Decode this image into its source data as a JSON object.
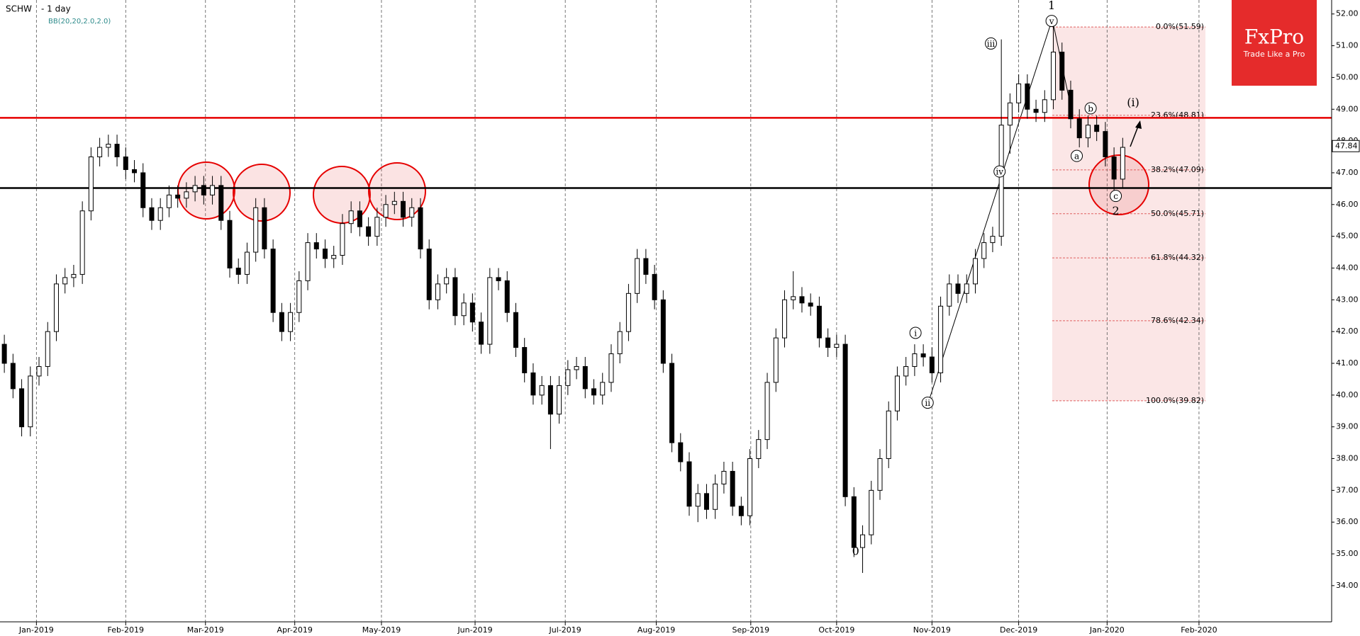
{
  "chart_data": {
    "type": "candlestick",
    "title": "SCHW",
    "subtitle": "- 1 day",
    "indicator": "BB(20,20,2.0,2.0)",
    "brand": {
      "name": "FxPro",
      "slogan": "Trade Like a Pro"
    },
    "open": [
      41.6,
      41.0,
      40.2,
      39.0,
      40.6,
      40.9,
      42.0,
      43.5,
      43.7,
      43.8,
      45.8,
      47.5,
      47.8,
      47.9,
      47.5,
      47.1,
      47.0,
      45.9,
      45.5,
      45.9,
      46.3,
      46.2,
      46.4,
      46.6,
      46.3,
      46.6,
      45.5,
      44.0,
      43.8,
      44.5,
      45.9,
      44.6,
      42.6,
      42.0,
      42.6,
      43.6,
      44.8,
      44.6,
      44.3,
      44.4,
      45.4,
      45.8,
      45.3,
      45.0,
      45.6,
      46.0,
      46.1,
      45.6,
      45.9,
      44.6,
      43.0,
      43.5,
      43.7,
      42.5,
      42.9,
      42.3,
      41.6,
      43.7,
      43.6,
      42.6,
      41.5,
      40.7,
      40.0,
      40.3,
      39.4,
      40.3,
      40.8,
      40.9,
      40.2,
      40.0,
      40.4,
      41.3,
      42.0,
      43.2,
      44.3,
      43.8,
      43.0,
      41.0,
      38.5,
      37.9,
      36.5,
      36.9,
      36.4,
      37.2,
      37.6,
      36.5,
      36.2,
      38.0,
      38.6,
      40.4,
      41.8,
      43.0,
      43.1,
      42.9,
      42.8,
      41.8,
      41.5,
      41.6,
      36.8,
      35.2,
      35.6,
      37.0,
      38.0,
      39.5,
      40.6,
      40.9,
      41.3,
      41.2,
      40.7,
      42.8,
      43.5,
      43.2,
      43.5,
      44.3,
      44.8,
      45.0,
      48.5,
      49.2,
      49.8,
      49.0,
      48.9,
      49.3,
      50.8,
      49.6,
      48.7,
      48.1,
      48.5,
      48.3,
      47.5,
      46.8
    ],
    "high": [
      41.9,
      41.3,
      40.5,
      40.9,
      41.2,
      42.3,
      43.8,
      44.0,
      44.1,
      46.1,
      47.8,
      48.1,
      48.2,
      48.2,
      47.8,
      47.4,
      47.3,
      46.2,
      46.2,
      46.6,
      46.6,
      46.7,
      46.9,
      46.9,
      46.9,
      46.9,
      45.8,
      44.3,
      44.8,
      46.2,
      46.2,
      44.9,
      42.9,
      42.9,
      43.9,
      45.1,
      45.1,
      44.9,
      44.7,
      45.7,
      46.1,
      46.1,
      45.6,
      45.9,
      46.3,
      46.4,
      46.4,
      46.2,
      46.2,
      44.9,
      43.8,
      44.0,
      44.0,
      43.2,
      43.2,
      42.6,
      44.0,
      44.0,
      43.9,
      42.9,
      41.8,
      41.0,
      40.6,
      40.6,
      40.6,
      41.1,
      41.2,
      41.2,
      40.5,
      40.7,
      41.6,
      42.3,
      43.5,
      44.6,
      44.6,
      44.1,
      43.3,
      41.3,
      38.8,
      38.2,
      37.2,
      37.2,
      37.5,
      37.9,
      37.9,
      36.8,
      38.3,
      38.9,
      40.7,
      42.1,
      43.3,
      43.9,
      43.4,
      43.2,
      43.1,
      42.1,
      41.9,
      41.9,
      37.1,
      35.9,
      37.3,
      38.3,
      39.8,
      40.9,
      41.2,
      41.6,
      41.6,
      41.5,
      43.1,
      43.8,
      43.8,
      43.8,
      44.6,
      45.1,
      45.3,
      51.2,
      49.5,
      50.1,
      50.1,
      49.3,
      49.6,
      51.6,
      51.1,
      49.9,
      49.0,
      48.8,
      48.8,
      48.6,
      47.8,
      48.1
    ],
    "low": [
      40.7,
      39.9,
      38.7,
      38.7,
      40.3,
      40.6,
      41.7,
      43.2,
      43.4,
      43.5,
      45.5,
      47.2,
      47.5,
      47.2,
      46.8,
      46.7,
      45.6,
      45.2,
      45.2,
      45.6,
      45.9,
      45.9,
      46.1,
      46.0,
      46.0,
      45.2,
      43.7,
      43.5,
      43.5,
      44.2,
      44.3,
      42.3,
      41.7,
      41.7,
      42.3,
      43.3,
      44.3,
      44.0,
      44.0,
      44.1,
      45.1,
      45.0,
      44.7,
      44.7,
      45.3,
      45.7,
      45.3,
      45.3,
      44.3,
      42.7,
      42.7,
      43.2,
      42.2,
      42.2,
      42.0,
      41.3,
      41.3,
      43.3,
      42.3,
      41.2,
      40.4,
      39.7,
      39.7,
      38.3,
      39.1,
      40.0,
      40.5,
      39.9,
      39.7,
      39.7,
      40.1,
      41.0,
      41.7,
      42.9,
      43.5,
      42.7,
      40.7,
      38.2,
      37.6,
      36.2,
      36.0,
      36.1,
      36.1,
      36.9,
      36.2,
      35.9,
      35.9,
      37.7,
      38.3,
      40.1,
      41.5,
      42.7,
      42.6,
      42.5,
      41.5,
      41.2,
      41.2,
      36.5,
      34.9,
      34.4,
      35.3,
      36.7,
      37.7,
      39.2,
      40.3,
      40.6,
      40.9,
      40.4,
      40.4,
      42.5,
      42.9,
      42.9,
      43.2,
      44.0,
      44.5,
      44.7,
      47.6,
      48.9,
      48.7,
      48.6,
      48.6,
      49.0,
      49.3,
      48.4,
      47.8,
      47.8,
      48.0,
      47.2,
      46.3,
      46.5
    ],
    "close": [
      41.0,
      40.2,
      39.0,
      40.6,
      40.9,
      42.0,
      43.5,
      43.7,
      43.8,
      45.8,
      47.5,
      47.8,
      47.9,
      47.5,
      47.1,
      47.0,
      45.9,
      45.5,
      45.9,
      46.3,
      46.2,
      46.4,
      46.6,
      46.3,
      46.6,
      45.5,
      44.0,
      43.8,
      44.5,
      45.9,
      44.6,
      42.6,
      42.0,
      42.6,
      43.6,
      44.8,
      44.6,
      44.3,
      44.4,
      45.4,
      45.8,
      45.3,
      45.0,
      45.6,
      46.0,
      46.1,
      45.6,
      45.9,
      44.6,
      43.0,
      43.5,
      43.7,
      42.5,
      42.9,
      42.3,
      41.6,
      43.7,
      43.6,
      42.6,
      41.5,
      40.7,
      40.0,
      40.3,
      39.4,
      40.3,
      40.8,
      40.9,
      40.2,
      40.0,
      40.4,
      41.3,
      42.0,
      43.2,
      44.3,
      43.8,
      43.0,
      41.0,
      38.5,
      37.9,
      36.5,
      36.9,
      36.4,
      37.2,
      37.6,
      36.5,
      36.2,
      38.0,
      38.6,
      40.4,
      41.8,
      43.0,
      43.1,
      42.9,
      42.8,
      41.8,
      41.5,
      41.6,
      36.8,
      35.2,
      35.6,
      37.0,
      38.0,
      39.5,
      40.6,
      40.9,
      41.3,
      41.2,
      40.7,
      42.8,
      43.5,
      43.2,
      43.5,
      44.3,
      44.8,
      45.0,
      48.5,
      49.2,
      49.8,
      49.0,
      48.9,
      49.3,
      50.8,
      49.6,
      48.7,
      48.1,
      48.5,
      48.3,
      47.5,
      46.8,
      47.8
    ],
    "up_color": "#ffffff",
    "down_color": "#000000",
    "xlim": [
      -0.5,
      153.1
    ],
    "xticks": [
      {
        "value": 3.7,
        "label": "Jan-2019"
      },
      {
        "value": 14.0,
        "label": "Feb-2019"
      },
      {
        "value": 23.2,
        "label": "Mar-2019"
      },
      {
        "value": 33.5,
        "label": "Apr-2019"
      },
      {
        "value": 43.5,
        "label": "May-2019"
      },
      {
        "value": 54.3,
        "label": "Jun-2019"
      },
      {
        "value": 64.7,
        "label": "Jul-2019"
      },
      {
        "value": 75.2,
        "label": "Aug-2019"
      },
      {
        "value": 86.1,
        "label": "Sep-2019"
      },
      {
        "value": 96.0,
        "label": "Oct-2019"
      },
      {
        "value": 107.0,
        "label": "Nov-2019"
      },
      {
        "value": 117.0,
        "label": "Dec-2019"
      },
      {
        "value": 127.2,
        "label": "Jan-2020"
      },
      {
        "value": 137.8,
        "label": "Feb-2020"
      }
    ],
    "ylim": [
      32.86,
      52.44
    ],
    "yticks": [
      {
        "value": 34,
        "label": "34.00"
      },
      {
        "value": 35,
        "label": "35.00"
      },
      {
        "value": 36,
        "label": "36.00"
      },
      {
        "value": 37,
        "label": "37.00"
      },
      {
        "value": 38,
        "label": "38.00"
      },
      {
        "value": 39,
        "label": "39.00"
      },
      {
        "value": 40,
        "label": "40.00"
      },
      {
        "value": 41,
        "label": "41.00"
      },
      {
        "value": 42,
        "label": "42.00"
      },
      {
        "value": 43,
        "label": "43.00"
      },
      {
        "value": 44,
        "label": "44.00"
      },
      {
        "value": 45,
        "label": "45.00"
      },
      {
        "value": 46,
        "label": "46.00"
      },
      {
        "value": 47,
        "label": "47.00"
      },
      {
        "value": 48,
        "label": "48.00"
      },
      {
        "value": 49,
        "label": "49.00"
      },
      {
        "value": 50,
        "label": "50.00"
      },
      {
        "value": 51,
        "label": "51.00"
      },
      {
        "value": 52,
        "label": "52.00"
      }
    ],
    "grid": true,
    "last_price": 47.84,
    "levels": [
      {
        "value": 48.73,
        "color": "#e60000"
      },
      {
        "value": 46.52,
        "color": "#000000"
      }
    ],
    "fib_levels": [
      {
        "value": 51.59,
        "label": "0.0%(51.59)"
      },
      {
        "value": 48.81,
        "label": "23.6%(48.81)"
      },
      {
        "value": 47.09,
        "label": "38.2%(47.09)"
      },
      {
        "value": 45.71,
        "label": "50.0%(45.71)"
      },
      {
        "value": 44.32,
        "label": "61.8%(44.32)"
      },
      {
        "value": 42.34,
        "label": "78.6%(42.34)"
      },
      {
        "value": 39.82,
        "label": "100.0%(39.82)"
      }
    ],
    "annotations": [
      {
        "text": "1",
        "x": 120.8,
        "y": 52.27,
        "circled": false
      },
      {
        "text": "v",
        "x": 120.8,
        "y": 51.78,
        "circled": true
      },
      {
        "text": "iii",
        "x": 113.8,
        "y": 51.07,
        "circled": true
      },
      {
        "text": "iv",
        "x": 114.8,
        "y": 47.04,
        "circled": true
      },
      {
        "text": "i",
        "x": 105.1,
        "y": 41.96,
        "circled": true
      },
      {
        "text": "ii",
        "x": 106.5,
        "y": 39.76,
        "circled": true
      },
      {
        "text": "0",
        "x": 98.2,
        "y": 35.09,
        "circled": false
      },
      {
        "text": "a",
        "x": 123.7,
        "y": 47.53,
        "circled": true
      },
      {
        "text": "b",
        "x": 125.3,
        "y": 49.03,
        "circled": true
      },
      {
        "text": "c",
        "x": 128.2,
        "y": 46.27,
        "circled": true
      },
      {
        "text": "2",
        "x": 128.2,
        "y": 45.81,
        "circled": false
      },
      {
        "text": "(i)",
        "x": 130.2,
        "y": 49.22,
        "circled": false
      }
    ]
  }
}
